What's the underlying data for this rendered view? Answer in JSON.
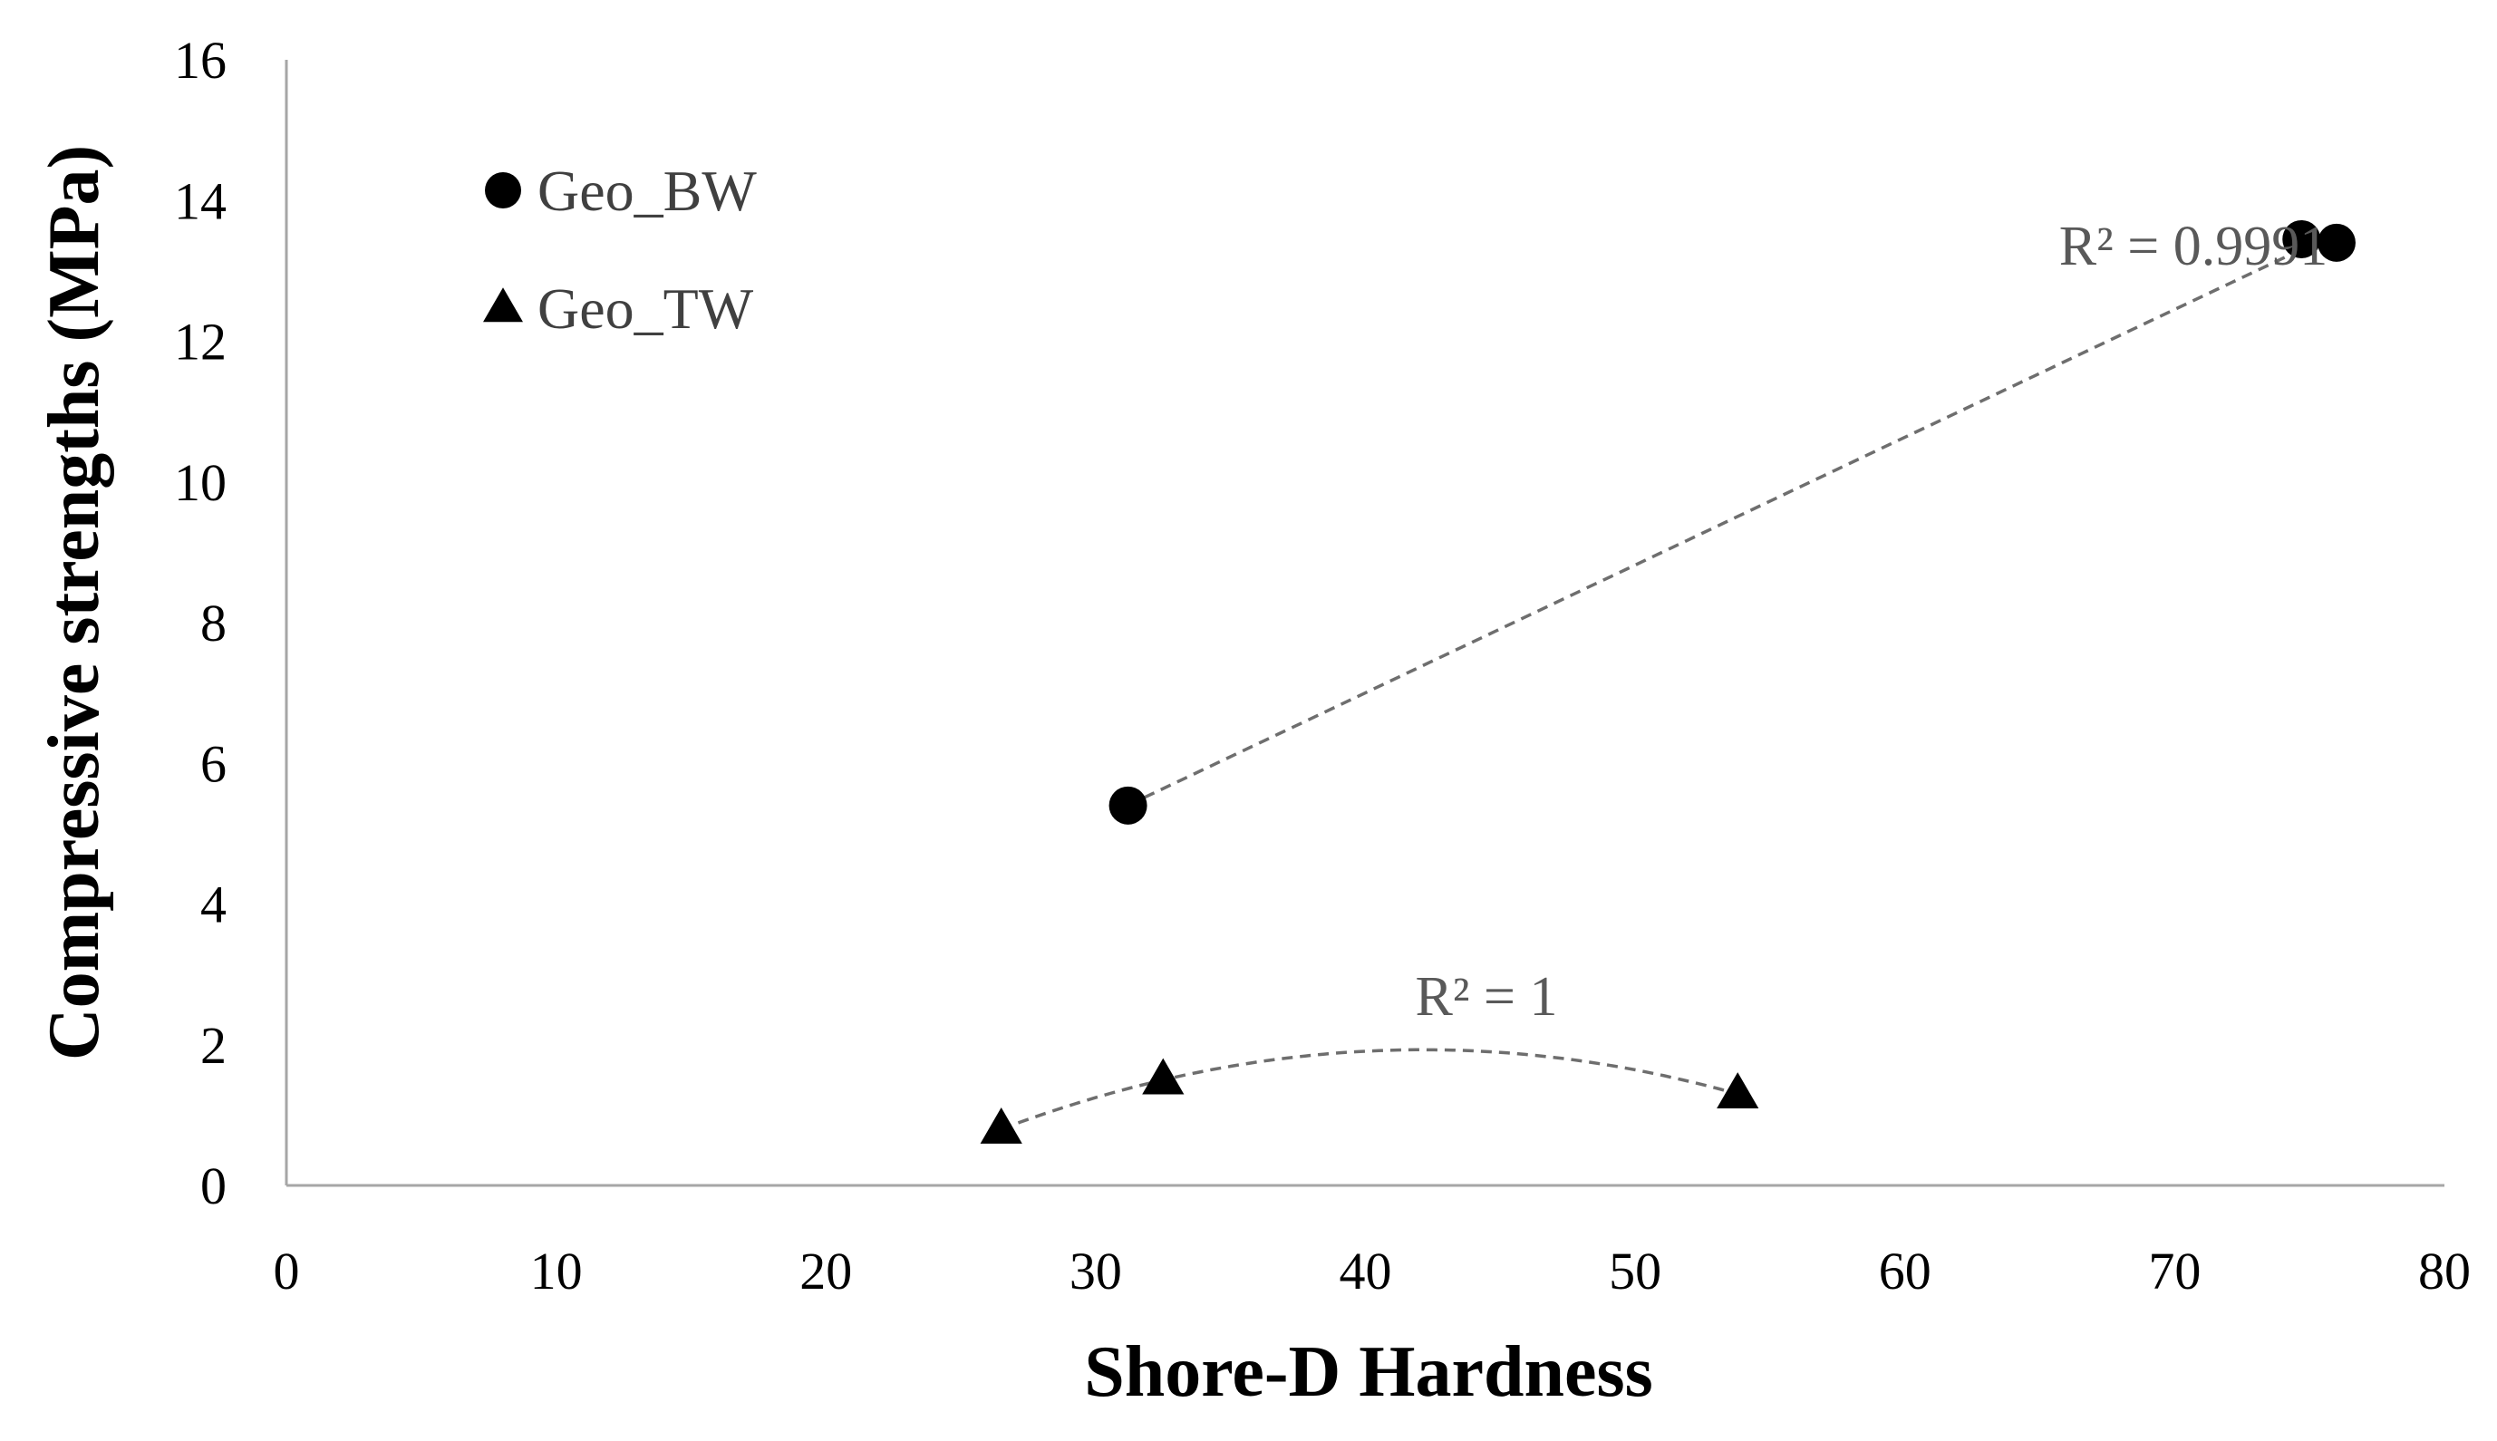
{
  "chart_data": {
    "type": "scatter",
    "title": "",
    "xlabel": "Shore-D Hardness",
    "ylabel": "Compressive strengths (MPa)",
    "xlim": [
      0,
      80
    ],
    "ylim": [
      0,
      16
    ],
    "x_ticks": [
      0,
      10,
      20,
      30,
      40,
      50,
      60,
      70,
      80
    ],
    "y_ticks": [
      0,
      2,
      4,
      6,
      8,
      10,
      12,
      14,
      16
    ],
    "grid": false,
    "legend_position": "top-left",
    "series": [
      {
        "name": "Geo_BW",
        "marker": "circle",
        "points": [
          [
            31.2,
            5.4
          ],
          [
            74.7,
            13.45
          ],
          [
            76.0,
            13.4
          ]
        ],
        "trendline": "linear",
        "r2_label": "R² = 0.9991"
      },
      {
        "name": "Geo_TW",
        "marker": "triangle",
        "points": [
          [
            26.5,
            0.8
          ],
          [
            32.5,
            1.5
          ],
          [
            53.8,
            1.3
          ]
        ],
        "trendline": "polynomial",
        "r2_label": "R² = 1"
      }
    ]
  }
}
